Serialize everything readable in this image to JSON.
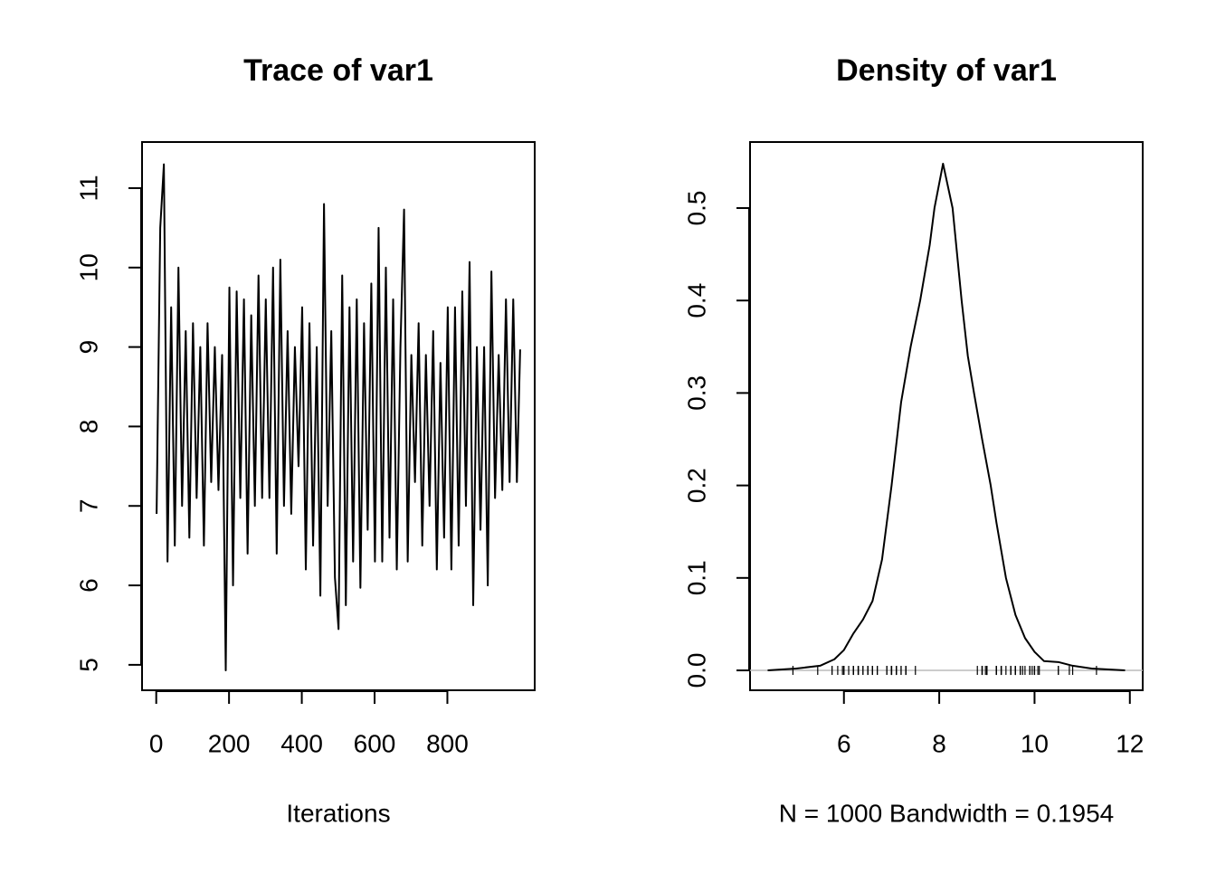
{
  "chart_data": [
    {
      "type": "line",
      "title": "Trace of var1",
      "xlabel": "Iterations",
      "color": "#000000",
      "x": [
        1,
        11,
        21,
        31,
        41,
        51,
        61,
        71,
        81,
        91,
        101,
        111,
        121,
        131,
        141,
        151,
        161,
        171,
        181,
        191,
        201,
        211,
        221,
        231,
        241,
        251,
        261,
        271,
        281,
        291,
        301,
        311,
        321,
        331,
        341,
        351,
        361,
        371,
        381,
        391,
        401,
        411,
        421,
        431,
        441,
        451,
        461,
        471,
        481,
        491,
        501,
        511,
        521,
        531,
        541,
        551,
        561,
        571,
        581,
        591,
        601,
        611,
        621,
        631,
        641,
        651,
        661,
        671,
        681,
        691,
        701,
        711,
        721,
        731,
        741,
        751,
        761,
        771,
        781,
        791,
        801,
        811,
        821,
        831,
        841,
        851,
        861,
        871,
        881,
        891,
        901,
        911,
        921,
        931,
        941,
        951,
        961,
        971,
        981,
        991,
        1000
      ],
      "series": [
        {
          "name": "var1",
          "values": [
            6.9,
            10.5,
            11.3,
            6.3,
            9.5,
            6.5,
            10.0,
            7.0,
            9.2,
            6.6,
            9.3,
            7.1,
            9.0,
            6.5,
            9.3,
            7.3,
            9.0,
            7.2,
            8.9,
            4.93,
            9.75,
            6.0,
            9.7,
            7.1,
            9.6,
            6.4,
            9.4,
            7.0,
            9.9,
            7.1,
            9.6,
            7.1,
            10.0,
            6.4,
            10.1,
            7.0,
            9.2,
            6.9,
            9.0,
            7.5,
            9.5,
            6.2,
            9.3,
            6.5,
            9.0,
            5.87,
            10.8,
            7.0,
            9.2,
            6.1,
            5.45,
            9.9,
            5.75,
            9.5,
            6.3,
            9.6,
            5.97,
            9.3,
            6.7,
            9.8,
            6.3,
            10.5,
            6.3,
            10.0,
            6.6,
            9.6,
            6.2,
            9.0,
            10.73,
            6.3,
            8.9,
            7.3,
            9.3,
            6.5,
            8.9,
            7.0,
            9.2,
            6.2,
            8.8,
            6.6,
            9.5,
            6.2,
            9.5,
            6.5,
            9.7,
            7.0,
            10.07,
            5.75,
            9.0,
            6.7,
            9.0,
            6.0,
            9.95,
            7.1,
            8.9,
            7.2,
            9.6,
            7.3,
            9.6,
            7.3,
            8.97
          ]
        }
      ],
      "xlim": [
        -39,
        1040
      ],
      "xticks": [
        0,
        200,
        400,
        600,
        800
      ],
      "ylim": [
        4.68,
        11.58
      ],
      "yticks": [
        5,
        6,
        7,
        8,
        9,
        10,
        11
      ]
    },
    {
      "type": "density",
      "title": "Density of var1",
      "xlabel": "N = 1000   Bandwidth = 0.1954",
      "color": "#000000",
      "x": [
        4.4,
        5.0,
        5.5,
        5.8,
        6.0,
        6.2,
        6.4,
        6.6,
        6.8,
        7.0,
        7.2,
        7.4,
        7.6,
        7.8,
        7.9,
        8.08,
        8.28,
        8.47,
        8.6,
        8.73,
        8.9,
        9.08,
        9.2,
        9.4,
        9.6,
        9.8,
        10.0,
        10.2,
        10.5,
        10.8,
        11.2,
        11.9
      ],
      "series": [
        {
          "name": "density",
          "values": [
            0,
            0.002,
            0.005,
            0.012,
            0.022,
            0.04,
            0.055,
            0.075,
            0.12,
            0.2,
            0.29,
            0.35,
            0.4,
            0.46,
            0.5,
            0.548,
            0.5,
            0.4,
            0.34,
            0.3,
            0.25,
            0.2,
            0.16,
            0.1,
            0.06,
            0.035,
            0.02,
            0.01,
            0.009,
            0.005,
            0.002,
            0
          ]
        }
      ],
      "xlim": [
        4.03,
        12.27
      ],
      "xticks": [
        6,
        8,
        10,
        12
      ],
      "ylim": [
        -0.0215,
        0.5714
      ],
      "yticks": [
        {
          "value": 0,
          "label": "0.0"
        },
        0.1,
        0.2,
        0.3,
        0.4,
        0.5
      ]
    }
  ]
}
